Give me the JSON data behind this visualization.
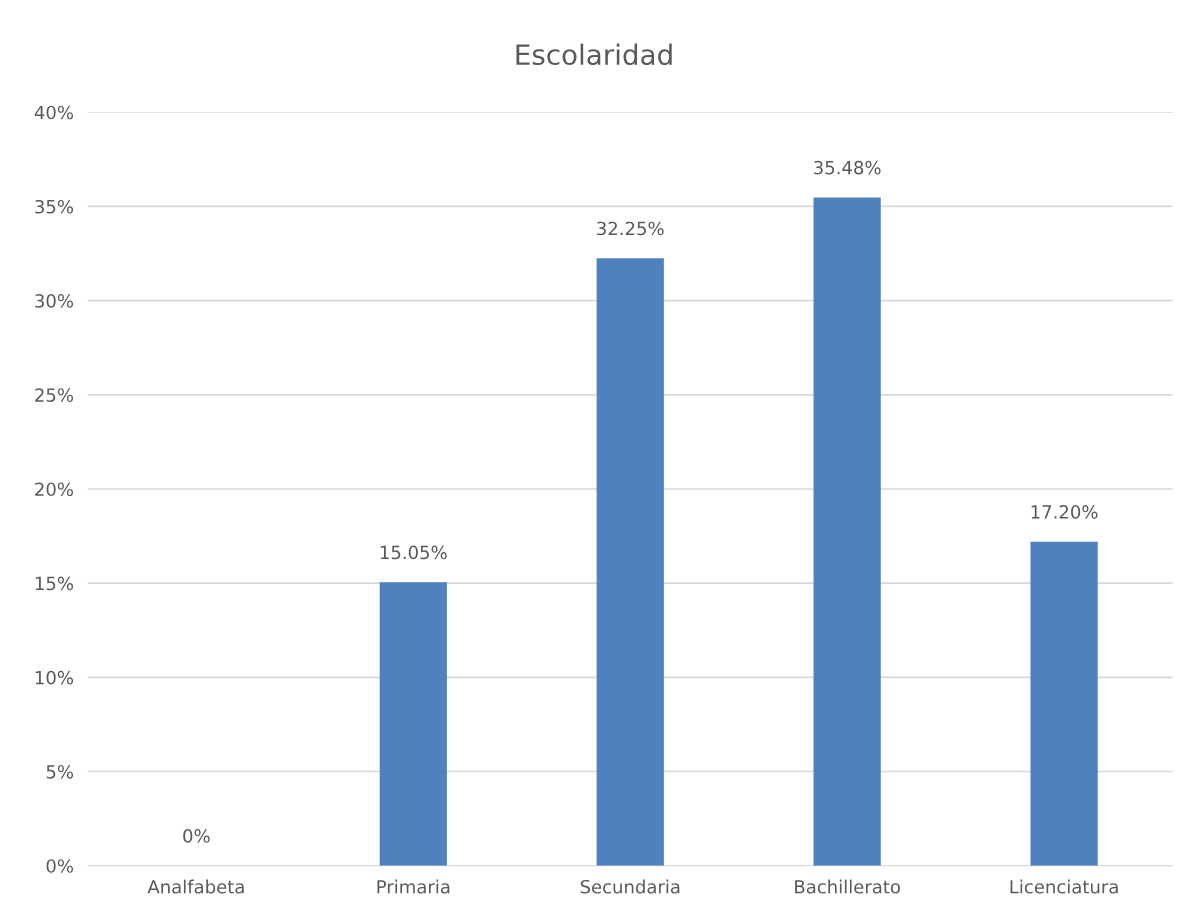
{
  "chart_data": {
    "type": "bar",
    "title": "Escolaridad",
    "categories": [
      "Analfabeta",
      "Primaria",
      "Secundaria",
      "Bachillerato",
      "Licenciatura"
    ],
    "values": [
      0,
      15.05,
      32.25,
      35.48,
      17.2
    ],
    "value_labels": [
      "0%",
      "15.05%",
      "32.25%",
      "35.48%",
      "17.20%"
    ],
    "color": "#4f81bd",
    "ylim": [
      0,
      40
    ],
    "yticks": [
      {
        "value": 0,
        "label": "0%"
      },
      {
        "value": 5,
        "label": "5%"
      },
      {
        "value": 10,
        "label": "10%"
      },
      {
        "value": 15,
        "label": "15%"
      },
      {
        "value": 20,
        "label": "20%"
      },
      {
        "value": 25,
        "label": "25%"
      },
      {
        "value": 30,
        "label": "30%"
      },
      {
        "value": 35,
        "label": "35%"
      },
      {
        "value": 40,
        "label": "40%"
      }
    ],
    "grid": "y",
    "legend": false
  }
}
